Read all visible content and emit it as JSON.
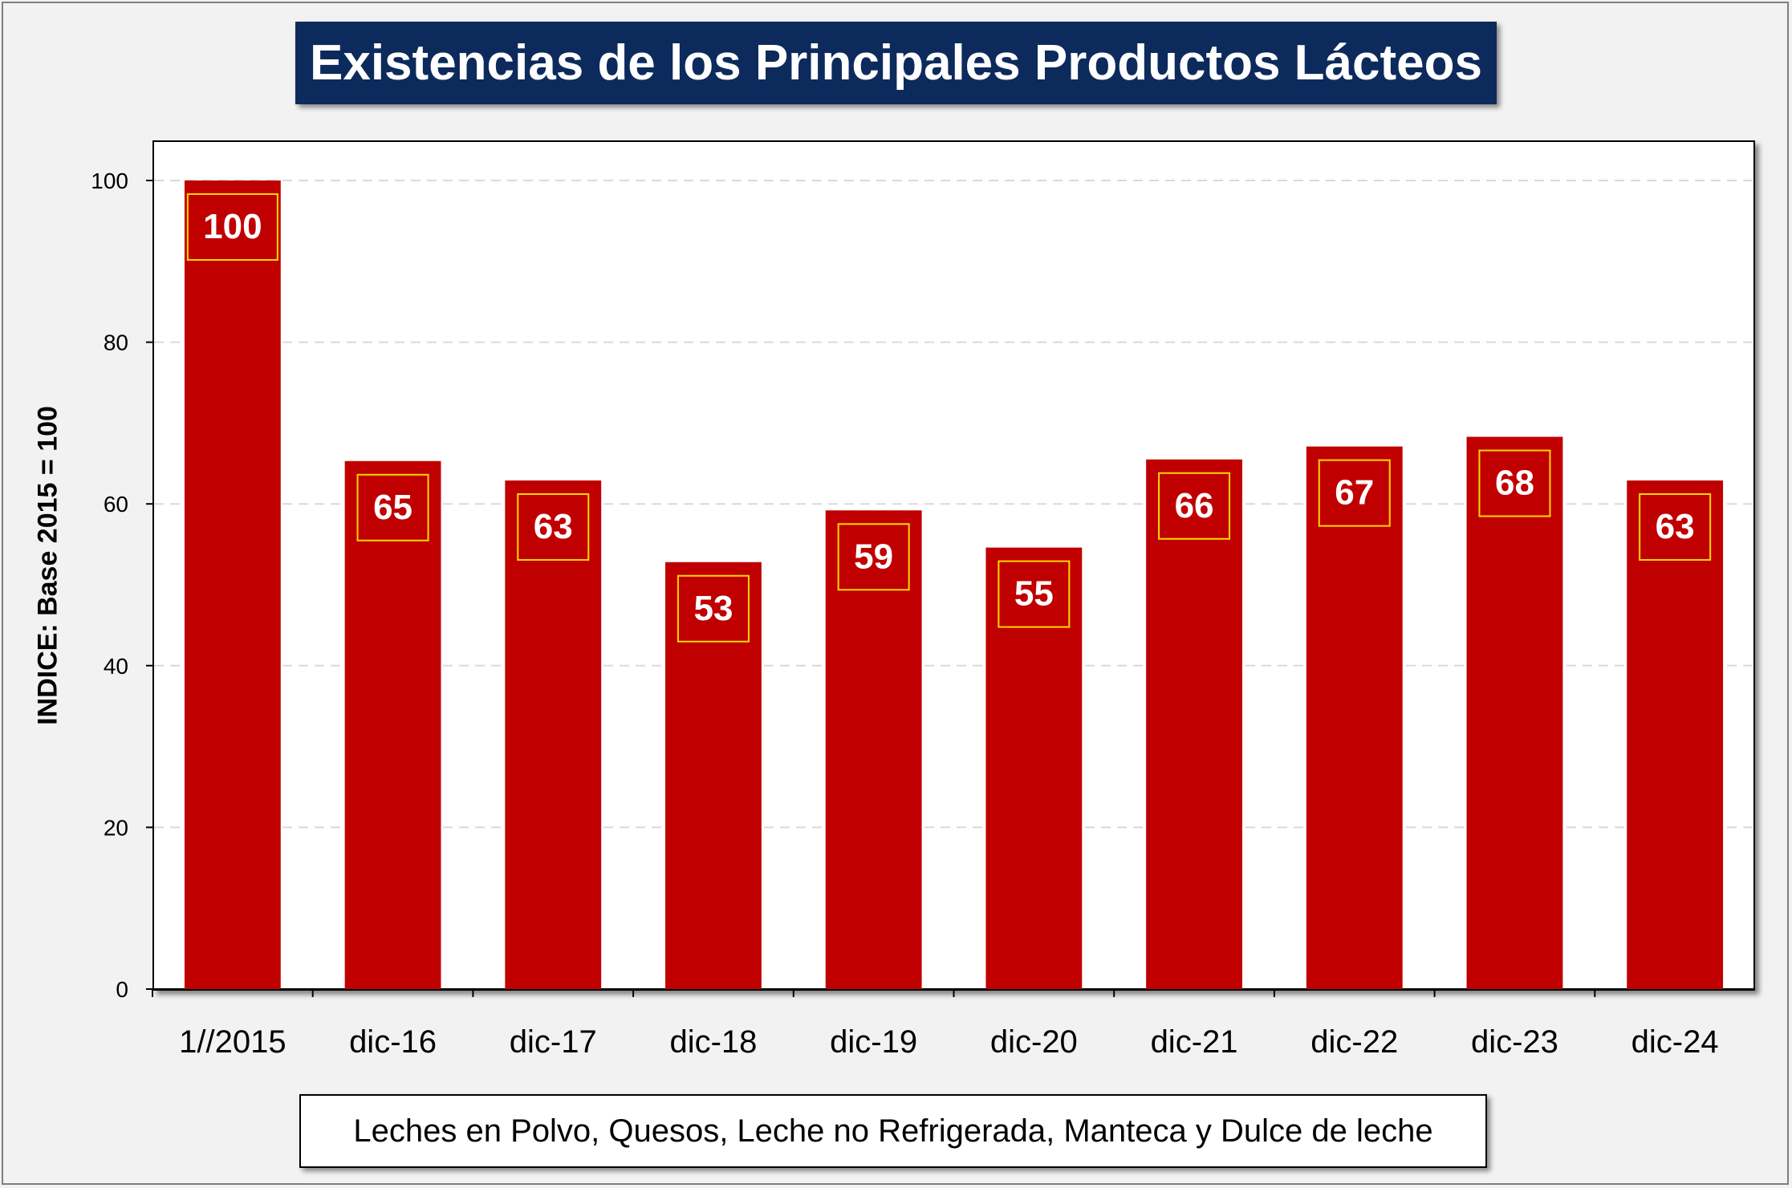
{
  "chart_data": {
    "type": "bar",
    "title": "Existencias de los Principales Productos Lácteos",
    "ylabel": "INDICE: Base 2015 = 100",
    "xlabel": "",
    "categories": [
      "1//2015",
      "dic-16",
      "dic-17",
      "dic-18",
      "dic-19",
      "dic-20",
      "dic-21",
      "dic-22",
      "dic-23",
      "dic-24"
    ],
    "series": [
      {
        "name": "Leches en Polvo, Quesos, Leche no Refrigerada, Manteca y Dulce de leche",
        "values": [
          100,
          65.3,
          62.9,
          52.8,
          59.2,
          54.6,
          65.5,
          67.1,
          68.3,
          62.9
        ],
        "data_labels": [
          "100",
          "65",
          "63",
          "53",
          "59",
          "55",
          "66",
          "67",
          "68",
          "63"
        ]
      }
    ],
    "ylim": [
      0,
      100
    ],
    "yticks": [
      0,
      20,
      40,
      60,
      80,
      100
    ],
    "grid": true,
    "legend_placement": "bottom",
    "colors": {
      "bar": "#c00000",
      "data_label_border": "#ffd700",
      "title_background": "#0d2a5c",
      "gridline": "#d9d9d9"
    }
  }
}
